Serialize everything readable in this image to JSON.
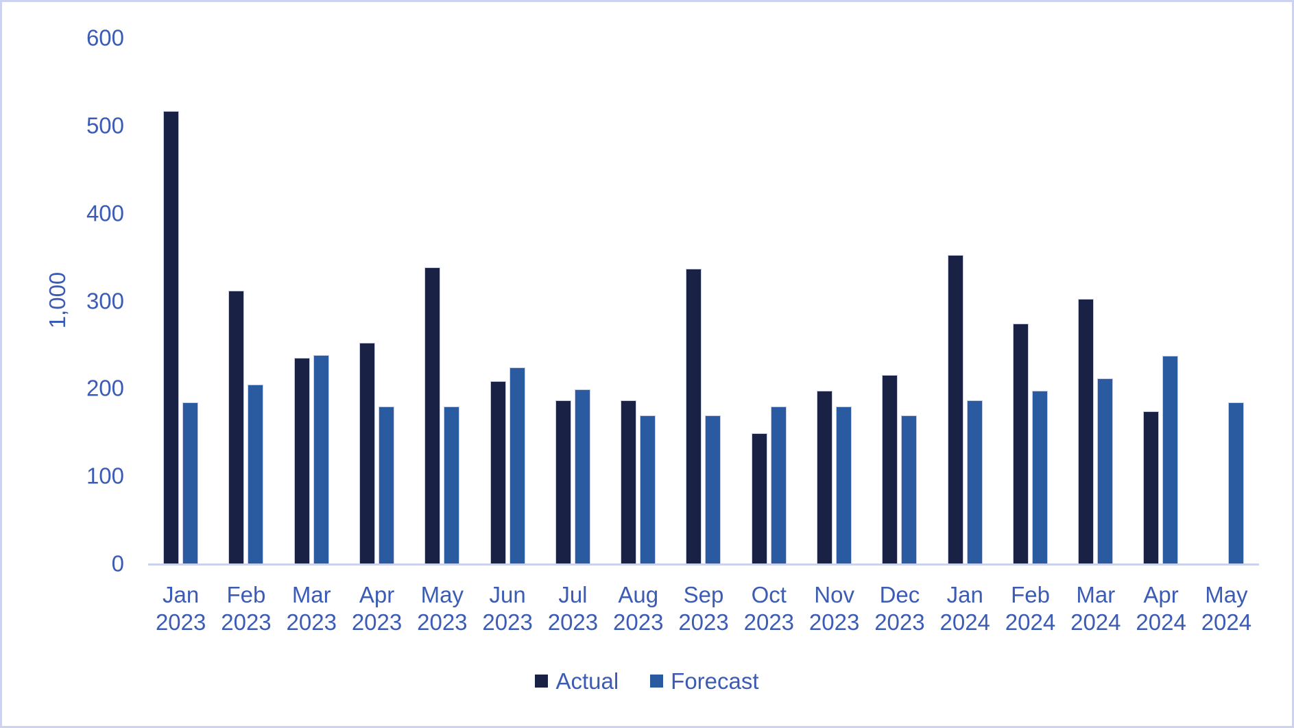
{
  "figure": {
    "background": "#FFFFFF",
    "border_color": "#CDD3EF",
    "text_color": "#3B5BB5",
    "axis_line_color": "#CBD2EE",
    "bar_stroke_color": "#C6CCE4"
  },
  "legend": {
    "items": [
      {
        "label": "Actual",
        "color": "#192244"
      },
      {
        "label": "Forecast",
        "color": "#2A5AA0"
      }
    ]
  },
  "chart_data": {
    "type": "bar",
    "title": "",
    "xlabel": "",
    "ylabel": "1,000",
    "ylim": [
      0,
      600
    ],
    "yticks": [
      "0",
      "100",
      "200",
      "300",
      "400",
      "500",
      "600"
    ],
    "grid": false,
    "legend_position": "bottom",
    "categories": [
      {
        "month": "Jan",
        "year": "2023"
      },
      {
        "month": "Feb",
        "year": "2023"
      },
      {
        "month": "Mar",
        "year": "2023"
      },
      {
        "month": "Apr",
        "year": "2023"
      },
      {
        "month": "May",
        "year": "2023"
      },
      {
        "month": "Jun",
        "year": "2023"
      },
      {
        "month": "Jul",
        "year": "2023"
      },
      {
        "month": "Aug",
        "year": "2023"
      },
      {
        "month": "Sep",
        "year": "2023"
      },
      {
        "month": "Oct",
        "year": "2023"
      },
      {
        "month": "Nov",
        "year": "2023"
      },
      {
        "month": "Dec",
        "year": "2023"
      },
      {
        "month": "Jan",
        "year": "2024"
      },
      {
        "month": "Feb",
        "year": "2024"
      },
      {
        "month": "Mar",
        "year": "2024"
      },
      {
        "month": "Apr",
        "year": "2024"
      },
      {
        "month": "May",
        "year": "2024"
      }
    ],
    "series": [
      {
        "name": "Actual",
        "color": "#192244",
        "values": [
          516,
          311,
          235,
          252,
          338,
          208,
          186,
          186,
          336,
          149,
          197,
          215,
          352,
          274,
          302,
          174,
          null
        ]
      },
      {
        "name": "Forecast",
        "color": "#2A5AA0",
        "values": [
          184,
          204,
          238,
          179,
          179,
          224,
          199,
          169,
          169,
          179,
          179,
          169,
          186,
          197,
          211,
          237,
          184
        ]
      }
    ]
  }
}
